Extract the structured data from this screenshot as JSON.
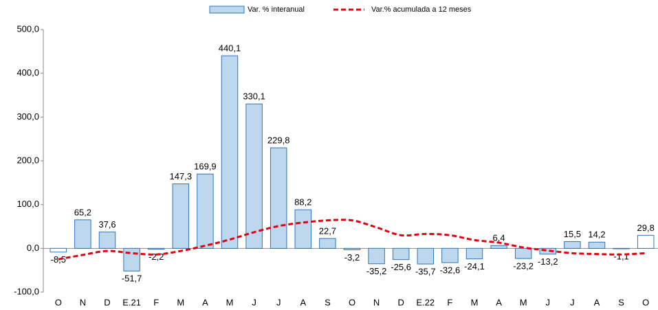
{
  "chart_data": {
    "type": "bar",
    "categories": [
      "O",
      "N",
      "D",
      "E.21",
      "F",
      "M",
      "A",
      "M",
      "J",
      "J",
      "A",
      "S",
      "O",
      "N",
      "D",
      "E.22",
      "F",
      "M",
      "A",
      "M",
      "J",
      "J",
      "A",
      "S",
      "O"
    ],
    "series": [
      {
        "name": "Var. % interanual",
        "type": "bar",
        "color": "#bdd7ee",
        "edge_color": "#2e75b6",
        "bar_colors": [
          "#ffffff",
          "#bdd7ee",
          "#bdd7ee",
          "#bdd7ee",
          "#bdd7ee",
          "#bdd7ee",
          "#bdd7ee",
          "#bdd7ee",
          "#bdd7ee",
          "#bdd7ee",
          "#bdd7ee",
          "#bdd7ee",
          "#bdd7ee",
          "#bdd7ee",
          "#bdd7ee",
          "#bdd7ee",
          "#bdd7ee",
          "#bdd7ee",
          "#bdd7ee",
          "#bdd7ee",
          "#bdd7ee",
          "#bdd7ee",
          "#bdd7ee",
          "#bdd7ee",
          "#ffffff"
        ],
        "values": [
          -8.5,
          65.2,
          37.6,
          -51.7,
          -2.2,
          147.3,
          169.9,
          440.1,
          330.1,
          229.8,
          88.2,
          22.7,
          -3.2,
          -35.2,
          -25.6,
          -35.7,
          -32.6,
          -24.1,
          6.4,
          -23.2,
          -13.2,
          15.5,
          14.2,
          -1.1,
          29.8
        ],
        "value_labels": [
          "-8,5",
          "65,2",
          "37,6",
          "-51,7",
          "-2,2",
          "147,3",
          "169,9",
          "440,1",
          "330,1",
          "229,8",
          "88,2",
          "22,7",
          "-3,2",
          "-35,2",
          "-25,6",
          "-35,7",
          "-32,6",
          "-24,1",
          "6,4",
          "-23,2",
          "-13,2",
          "15,5",
          "14,2",
          "-1,1",
          "29,8"
        ]
      },
      {
        "name": "Var.% acumulada a 12 meses",
        "type": "line",
        "color": "#e0000f",
        "dashed": true,
        "values": [
          -25,
          -15,
          -6,
          -11,
          -14,
          -6,
          6,
          20,
          37,
          51,
          59,
          64,
          64,
          48,
          30,
          33,
          30,
          19,
          13,
          2,
          -5,
          -11,
          -13,
          -14,
          -11
        ]
      }
    ],
    "ylim": [
      -100,
      500
    ],
    "yticks": [
      {
        "value": -100,
        "label": "-100,0"
      },
      {
        "value": 0,
        "label": "0,0"
      },
      {
        "value": 100,
        "label": "100,0"
      },
      {
        "value": 200,
        "label": "200,0"
      },
      {
        "value": 300,
        "label": "300,0"
      },
      {
        "value": 400,
        "label": "400,0"
      },
      {
        "value": 500,
        "label": "500,0"
      }
    ],
    "legend": "top"
  }
}
